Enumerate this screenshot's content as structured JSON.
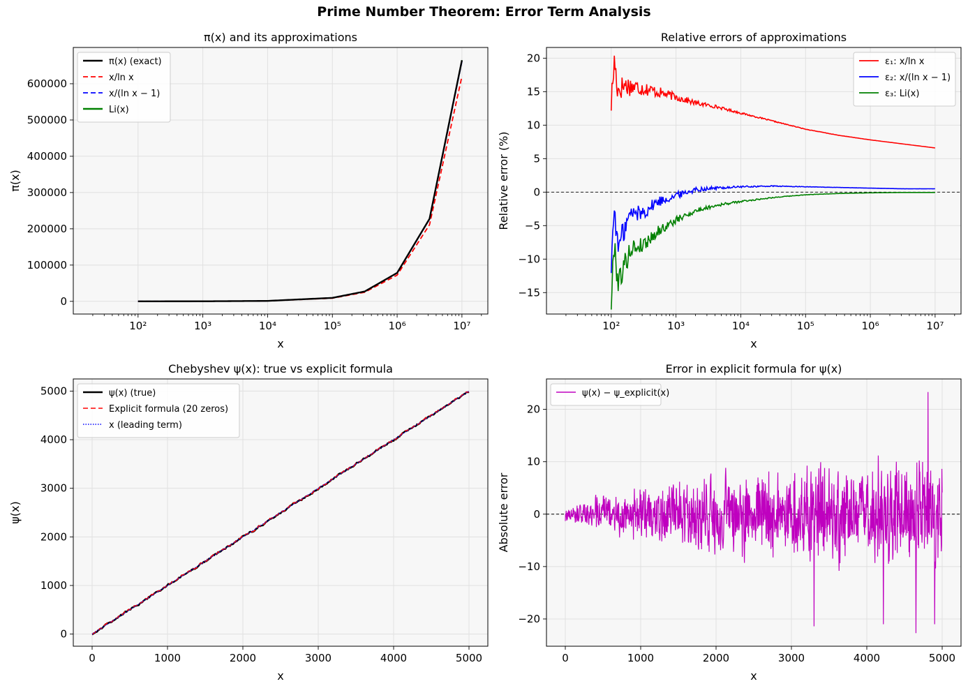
{
  "figure": {
    "title": "Prime Number Theorem: Error Term Analysis"
  },
  "colors": {
    "exact": "#000000",
    "red": "#ff0000",
    "blue": "#0000ff",
    "green": "#008000",
    "magenta": "#bf00bf",
    "grid": "#e0e0e0",
    "panel_bg": "#f7f7f7"
  },
  "chart_data": [
    {
      "type": "line",
      "title": "π(x) and its approximations",
      "xlabel": "x",
      "ylabel": "π(x)",
      "xscale": "log",
      "xlim": [
        1.0,
        7.4
      ],
      "ylim": [
        -35000,
        700000
      ],
      "xticks": [
        2,
        3,
        4,
        5,
        6,
        7
      ],
      "xtick_labels": [
        "10²",
        "10³",
        "10⁴",
        "10⁵",
        "10⁶",
        "10⁷"
      ],
      "yticks": [
        0,
        100000,
        200000,
        300000,
        400000,
        500000,
        600000
      ],
      "ytick_labels": [
        "0",
        "100000",
        "200000",
        "300000",
        "400000",
        "500000",
        "600000"
      ],
      "legend_position": "upper-left",
      "series": [
        {
          "name": "π(x) (exact)",
          "style": "solid",
          "color": "#000000",
          "x_log10": [
            2,
            3,
            4,
            5,
            5.5,
            6,
            6.5,
            7
          ],
          "values": [
            25,
            168,
            1229,
            9592,
            27293,
            78498,
            227647,
            664579
          ]
        },
        {
          "name": "x/ln x",
          "style": "dashed",
          "color": "#ff0000",
          "x_log10": [
            2,
            3,
            4,
            5,
            5.5,
            6,
            6.5,
            7
          ],
          "values": [
            22,
            145,
            1086,
            8686,
            25000,
            72382,
            211297,
            620421
          ]
        },
        {
          "name": "x/(ln x − 1)",
          "style": "dashed",
          "color": "#0000ff",
          "x_log10": [
            2,
            3,
            4,
            5,
            5.5,
            6,
            6.5,
            7
          ],
          "values": [
            28,
            169,
            1218,
            9512,
            27100,
            78030,
            226500,
            661459
          ]
        },
        {
          "name": "Li(x)",
          "style": "solid",
          "color": "#008000",
          "x_log10": [
            2,
            3,
            4,
            5,
            5.5,
            6,
            6.5,
            7
          ],
          "values": [
            30,
            177,
            1246,
            9629,
            27400,
            78627,
            228000,
            664918
          ]
        }
      ]
    },
    {
      "type": "line",
      "title": "Relative errors of approximations",
      "xlabel": "x",
      "ylabel": "Relative error (%)",
      "xscale": "log",
      "xlim": [
        1.0,
        7.4
      ],
      "ylim": [
        -18.2,
        21.6
      ],
      "xticks": [
        2,
        3,
        4,
        5,
        6,
        7
      ],
      "xtick_labels": [
        "10²",
        "10³",
        "10⁴",
        "10⁵",
        "10⁶",
        "10⁷"
      ],
      "yticks": [
        -15,
        -10,
        -5,
        0,
        5,
        10,
        15,
        20
      ],
      "ytick_labels": [
        "−15",
        "−10",
        "−5",
        "0",
        "5",
        "10",
        "15",
        "20"
      ],
      "hline": 0,
      "legend_position": "upper-right",
      "series": [
        {
          "name": "ε₁: x/ln x",
          "color": "#ff0000",
          "x_log10": [
            2.0,
            2.05,
            2.1,
            2.2,
            2.3,
            2.5,
            2.7,
            3.0,
            3.3,
            3.6,
            4.0,
            4.5,
            5.0,
            5.5,
            6.0,
            6.5,
            7.0
          ],
          "values": [
            13.3,
            19.8,
            15.2,
            16.0,
            15.8,
            15.5,
            15.0,
            14.2,
            13.3,
            12.8,
            11.8,
            10.6,
            9.4,
            8.5,
            7.8,
            7.2,
            6.6
          ]
        },
        {
          "name": "ε₂: x/(ln x − 1)",
          "color": "#0000ff",
          "x_log10": [
            2.0,
            2.05,
            2.1,
            2.2,
            2.3,
            2.5,
            2.7,
            3.0,
            3.3,
            3.6,
            4.0,
            4.5,
            5.0,
            5.5,
            6.0,
            6.5,
            7.0
          ],
          "values": [
            -11.0,
            -1.8,
            -8.5,
            -5.5,
            -3.2,
            -3.0,
            -1.5,
            -0.5,
            0.4,
            0.6,
            0.8,
            0.9,
            0.8,
            0.7,
            0.6,
            0.5,
            0.5
          ]
        },
        {
          "name": "ε₃: Li(x)",
          "color": "#008000",
          "x_log10": [
            2.0,
            2.05,
            2.1,
            2.2,
            2.3,
            2.5,
            2.7,
            3.0,
            3.3,
            3.6,
            4.0,
            4.5,
            5.0,
            5.5,
            6.0,
            6.5,
            7.0
          ],
          "values": [
            -16.5,
            -7.2,
            -13.5,
            -11.0,
            -8.5,
            -7.8,
            -6.0,
            -4.2,
            -2.8,
            -2.0,
            -1.4,
            -0.8,
            -0.4,
            -0.2,
            -0.1,
            -0.05,
            -0.05
          ]
        }
      ]
    },
    {
      "type": "line",
      "title": "Chebyshev ψ(x): true vs explicit formula",
      "xlabel": "x",
      "ylabel": "ψ(x)",
      "xlim": [
        -250,
        5250
      ],
      "ylim": [
        -250,
        5250
      ],
      "xticks": [
        0,
        1000,
        2000,
        3000,
        4000,
        5000
      ],
      "xtick_labels": [
        "0",
        "1000",
        "2000",
        "3000",
        "4000",
        "5000"
      ],
      "yticks": [
        0,
        1000,
        2000,
        3000,
        4000,
        5000
      ],
      "ytick_labels": [
        "0",
        "1000",
        "2000",
        "3000",
        "4000",
        "5000"
      ],
      "legend_position": "upper-left",
      "series": [
        {
          "name": "ψ(x) (true)",
          "style": "solid",
          "color": "#000000",
          "x": [
            0,
            5000
          ],
          "values": [
            0,
            5000
          ]
        },
        {
          "name": "Explicit formula (20 zeros)",
          "style": "dashed",
          "color": "#ff0000",
          "x": [
            0,
            5000
          ],
          "values": [
            0,
            5000
          ]
        },
        {
          "name": "x (leading term)",
          "style": "dotted",
          "color": "#0000ff",
          "x": [
            0,
            5000
          ],
          "values": [
            0,
            5000
          ]
        }
      ]
    },
    {
      "type": "line",
      "title": "Error in explicit formula for ψ(x)",
      "xlabel": "x",
      "ylabel": "Absolute error",
      "xlim": [
        -250,
        5250
      ],
      "ylim": [
        -25.2,
        25.8
      ],
      "xticks": [
        0,
        1000,
        2000,
        3000,
        4000,
        5000
      ],
      "xtick_labels": [
        "0",
        "1000",
        "2000",
        "3000",
        "4000",
        "5000"
      ],
      "yticks": [
        -20,
        -10,
        0,
        10,
        20
      ],
      "ytick_labels": [
        "−20",
        "−10",
        "0",
        "10",
        "20"
      ],
      "hline": 0,
      "legend_position": "upper-left",
      "envelope": {
        "x": [
          0,
          1000,
          2000,
          3000,
          4000,
          5000
        ],
        "amplitude": [
          2,
          8,
          11,
          13,
          15,
          16
        ]
      },
      "peaks": [
        {
          "x": 4810,
          "value": 23.3
        },
        {
          "x": 4650,
          "value": -22.7
        },
        {
          "x": 3300,
          "value": -21.4
        },
        {
          "x": 4220,
          "value": -21.0
        },
        {
          "x": 4900,
          "value": -21.0
        }
      ],
      "series": [
        {
          "name": "ψ(x) − ψ_explicit(x)",
          "color": "#bf00bf"
        }
      ]
    }
  ]
}
